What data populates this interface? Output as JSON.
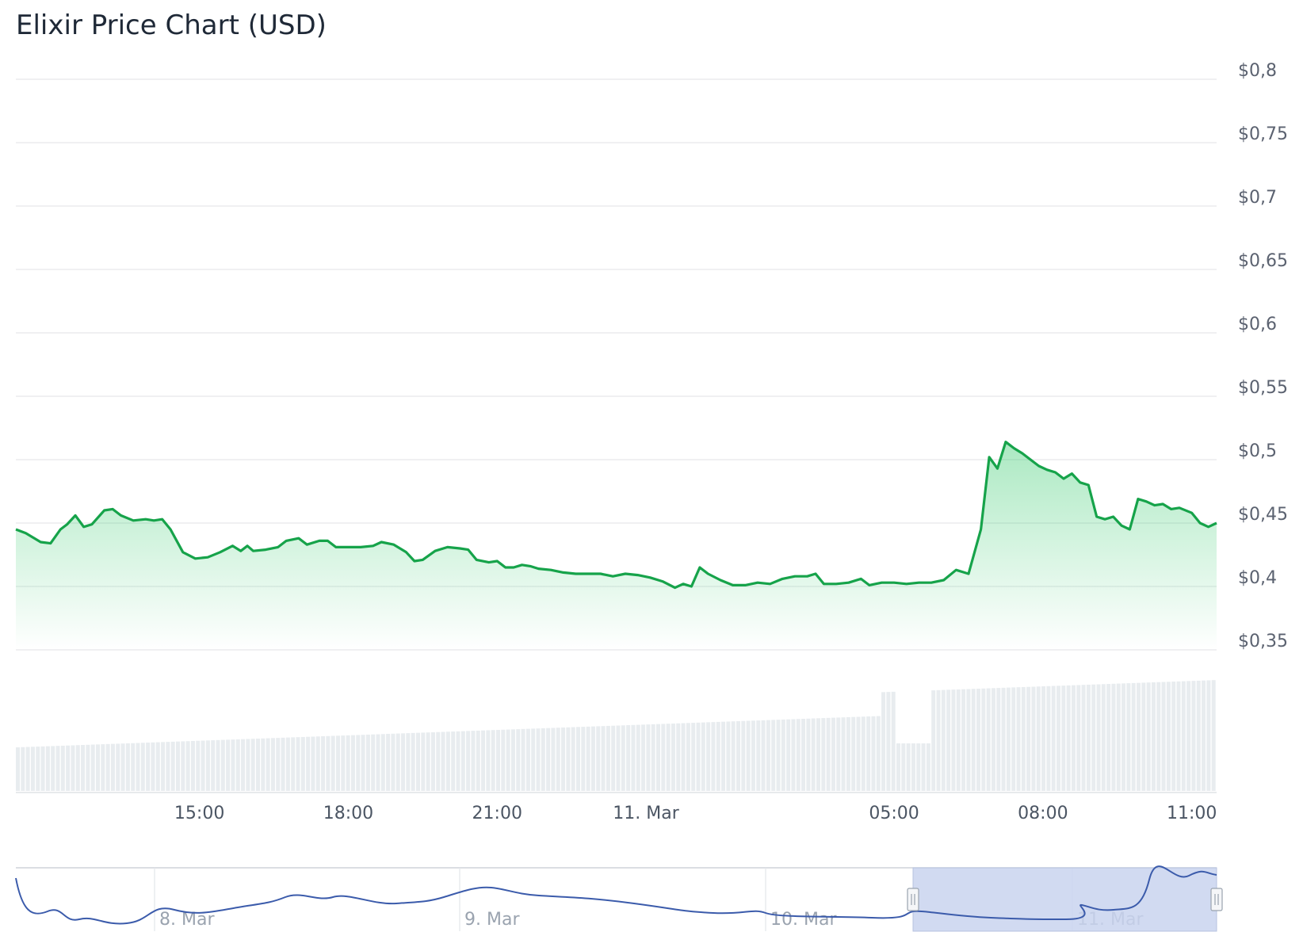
{
  "title": "Elixir Price Chart (USD)",
  "colors": {
    "price_line": "#16a34a",
    "area_top": "#22c55e",
    "volume_bar": "#e8ecef",
    "grid": "#e6e8eb",
    "navigator_line": "#3b5bab",
    "navigator_mask": "#c9d3ee",
    "navigator_border": "#b7c3e0"
  },
  "chart_data": {
    "type": "area",
    "ylim": [
      0.35,
      0.8
    ],
    "y_ticks": [
      "$0,8",
      "$0,75",
      "$0,7",
      "$0,65",
      "$0,6",
      "$0,55",
      "$0,5",
      "$0,45",
      "$0,4",
      "$0,35"
    ],
    "x_ticks": [
      "15:00",
      "18:00",
      "21:00",
      "11. Mar",
      "05:00",
      "08:00",
      "11:00"
    ],
    "x_range": [
      "2025-03-10T11:18",
      "2025-03-11T11:30"
    ],
    "x_tick_times": [
      "2025-03-10T15:00",
      "2025-03-10T18:00",
      "2025-03-10T21:00",
      "2025-03-11T00:00",
      "2025-03-11T05:00",
      "2025-03-11T08:00",
      "2025-03-11T11:00"
    ],
    "series": [
      {
        "values": [
          [
            "2025-03-10T11:18",
            0.445
          ],
          [
            "2025-03-10T11:30",
            0.442
          ],
          [
            "2025-03-10T11:48",
            0.435
          ],
          [
            "2025-03-10T12:00",
            0.434
          ],
          [
            "2025-03-10T12:12",
            0.445
          ],
          [
            "2025-03-10T12:20",
            0.449
          ],
          [
            "2025-03-10T12:30",
            0.456
          ],
          [
            "2025-03-10T12:40",
            0.447
          ],
          [
            "2025-03-10T12:50",
            0.449
          ],
          [
            "2025-03-10T13:05",
            0.46
          ],
          [
            "2025-03-10T13:15",
            0.461
          ],
          [
            "2025-03-10T13:25",
            0.456
          ],
          [
            "2025-03-10T13:40",
            0.452
          ],
          [
            "2025-03-10T13:55",
            0.453
          ],
          [
            "2025-03-10T14:05",
            0.452
          ],
          [
            "2025-03-10T14:15",
            0.453
          ],
          [
            "2025-03-10T14:25",
            0.445
          ],
          [
            "2025-03-10T14:40",
            0.427
          ],
          [
            "2025-03-10T14:55",
            0.422
          ],
          [
            "2025-03-10T15:10",
            0.423
          ],
          [
            "2025-03-10T15:25",
            0.427
          ],
          [
            "2025-03-10T15:40",
            0.432
          ],
          [
            "2025-03-10T15:50",
            0.428
          ],
          [
            "2025-03-10T15:58",
            0.432
          ],
          [
            "2025-03-10T16:05",
            0.428
          ],
          [
            "2025-03-10T16:20",
            0.429
          ],
          [
            "2025-03-10T16:35",
            0.431
          ],
          [
            "2025-03-10T16:45",
            0.436
          ],
          [
            "2025-03-10T17:00",
            0.438
          ],
          [
            "2025-03-10T17:10",
            0.433
          ],
          [
            "2025-03-10T17:25",
            0.436
          ],
          [
            "2025-03-10T17:35",
            0.436
          ],
          [
            "2025-03-10T17:45",
            0.431
          ],
          [
            "2025-03-10T18:00",
            0.431
          ],
          [
            "2025-03-10T18:15",
            0.431
          ],
          [
            "2025-03-10T18:30",
            0.432
          ],
          [
            "2025-03-10T18:40",
            0.435
          ],
          [
            "2025-03-10T18:55",
            0.433
          ],
          [
            "2025-03-10T19:10",
            0.427
          ],
          [
            "2025-03-10T19:20",
            0.42
          ],
          [
            "2025-03-10T19:30",
            0.421
          ],
          [
            "2025-03-10T19:45",
            0.428
          ],
          [
            "2025-03-10T20:00",
            0.431
          ],
          [
            "2025-03-10T20:15",
            0.43
          ],
          [
            "2025-03-10T20:25",
            0.429
          ],
          [
            "2025-03-10T20:35",
            0.421
          ],
          [
            "2025-03-10T20:50",
            0.419
          ],
          [
            "2025-03-10T21:00",
            0.42
          ],
          [
            "2025-03-10T21:10",
            0.415
          ],
          [
            "2025-03-10T21:20",
            0.415
          ],
          [
            "2025-03-10T21:30",
            0.417
          ],
          [
            "2025-03-10T21:40",
            0.416
          ],
          [
            "2025-03-10T21:50",
            0.414
          ],
          [
            "2025-03-10T22:05",
            0.413
          ],
          [
            "2025-03-10T22:20",
            0.411
          ],
          [
            "2025-03-10T22:35",
            0.41
          ],
          [
            "2025-03-10T22:50",
            0.41
          ],
          [
            "2025-03-10T23:05",
            0.41
          ],
          [
            "2025-03-10T23:20",
            0.408
          ],
          [
            "2025-03-10T23:35",
            0.41
          ],
          [
            "2025-03-10T23:50",
            0.409
          ],
          [
            "2025-03-11T00:05",
            0.407
          ],
          [
            "2025-03-11T00:20",
            0.404
          ],
          [
            "2025-03-11T00:35",
            0.399
          ],
          [
            "2025-03-11T00:45",
            0.402
          ],
          [
            "2025-03-11T00:55",
            0.4
          ],
          [
            "2025-03-11T01:05",
            0.415
          ],
          [
            "2025-03-11T01:15",
            0.41
          ],
          [
            "2025-03-11T01:30",
            0.405
          ],
          [
            "2025-03-11T01:45",
            0.401
          ],
          [
            "2025-03-11T02:00",
            0.401
          ],
          [
            "2025-03-11T02:15",
            0.403
          ],
          [
            "2025-03-11T02:30",
            0.402
          ],
          [
            "2025-03-11T02:45",
            0.406
          ],
          [
            "2025-03-11T03:00",
            0.408
          ],
          [
            "2025-03-11T03:15",
            0.408
          ],
          [
            "2025-03-11T03:25",
            0.41
          ],
          [
            "2025-03-11T03:35",
            0.402
          ],
          [
            "2025-03-11T03:50",
            0.402
          ],
          [
            "2025-03-11T04:05",
            0.403
          ],
          [
            "2025-03-11T04:20",
            0.406
          ],
          [
            "2025-03-11T04:30",
            0.401
          ],
          [
            "2025-03-11T04:45",
            0.403
          ],
          [
            "2025-03-11T05:00",
            0.403
          ],
          [
            "2025-03-11T05:15",
            0.402
          ],
          [
            "2025-03-11T05:30",
            0.403
          ],
          [
            "2025-03-11T05:45",
            0.403
          ],
          [
            "2025-03-11T06:00",
            0.405
          ],
          [
            "2025-03-11T06:15",
            0.413
          ],
          [
            "2025-03-11T06:30",
            0.41
          ],
          [
            "2025-03-11T06:45",
            0.445
          ],
          [
            "2025-03-11T06:55",
            0.502
          ],
          [
            "2025-03-11T07:05",
            0.493
          ],
          [
            "2025-03-11T07:15",
            0.514
          ],
          [
            "2025-03-11T07:25",
            0.509
          ],
          [
            "2025-03-11T07:35",
            0.505
          ],
          [
            "2025-03-11T07:45",
            0.5
          ],
          [
            "2025-03-11T07:55",
            0.495
          ],
          [
            "2025-03-11T08:05",
            0.492
          ],
          [
            "2025-03-11T08:15",
            0.49
          ],
          [
            "2025-03-11T08:25",
            0.485
          ],
          [
            "2025-03-11T08:35",
            0.489
          ],
          [
            "2025-03-11T08:45",
            0.482
          ],
          [
            "2025-03-11T08:55",
            0.48
          ],
          [
            "2025-03-11T09:05",
            0.455
          ],
          [
            "2025-03-11T09:15",
            0.453
          ],
          [
            "2025-03-11T09:25",
            0.455
          ],
          [
            "2025-03-11T09:35",
            0.448
          ],
          [
            "2025-03-11T09:45",
            0.445
          ],
          [
            "2025-03-11T09:55",
            0.469
          ],
          [
            "2025-03-11T10:05",
            0.467
          ],
          [
            "2025-03-11T10:15",
            0.464
          ],
          [
            "2025-03-11T10:25",
            0.465
          ],
          [
            "2025-03-11T10:35",
            0.461
          ],
          [
            "2025-03-11T10:45",
            0.462
          ],
          [
            "2025-03-11T11:00",
            0.458
          ],
          [
            "2025-03-11T11:10",
            0.45
          ],
          [
            "2025-03-11T11:20",
            0.447
          ],
          [
            "2025-03-11T11:30",
            0.45
          ]
        ]
      }
    ],
    "navigator": {
      "labels": [
        "8. Mar",
        "9. Mar",
        "10. Mar",
        "11. Mar"
      ]
    }
  }
}
